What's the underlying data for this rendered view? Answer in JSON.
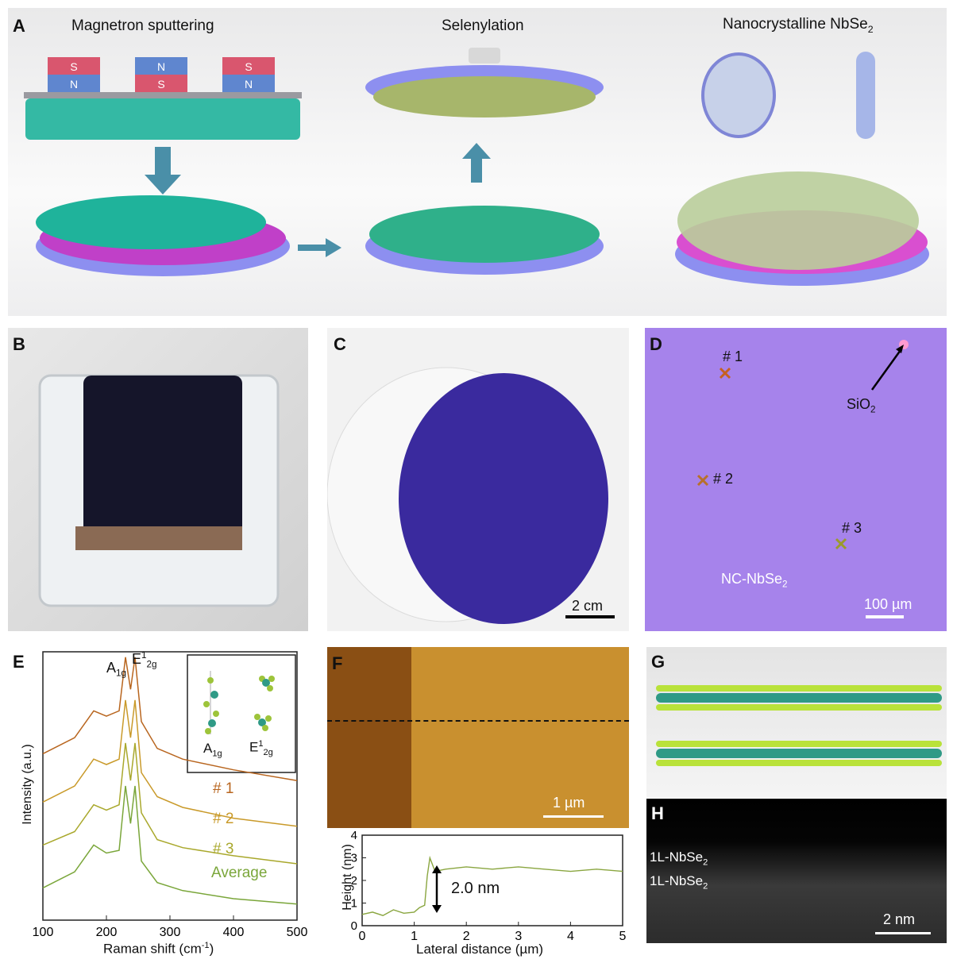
{
  "panelA": {
    "label": "A",
    "step1_title": "Magnetron sputtering",
    "step2_title": "Selenylation",
    "step3_title_main": "Nanocrystalline NbSe",
    "step3_title_sub": "2",
    "magnet_labels": [
      "S",
      "N",
      "N",
      "S",
      "S",
      "N"
    ]
  },
  "panelB": {
    "label": "B"
  },
  "panelC": {
    "label": "C",
    "scale_bar": "2 cm"
  },
  "panelD": {
    "label": "D",
    "point1": "# 1",
    "point2": "# 2",
    "point3": "# 3",
    "sio2_main": "SiO",
    "sio2_sub": "2",
    "film_main": "NC-NbSe",
    "film_sub": "2",
    "scale_bar": "100 µm"
  },
  "panelE": {
    "label": "E",
    "peak_a_main": "A",
    "peak_a_sub": "1g",
    "peak_e_main": "E",
    "peak_e_sup": "1",
    "peak_e_sub": "2g",
    "inset_a_main": "A",
    "inset_a_sub": "1g",
    "inset_e_main": "E",
    "inset_e_sup": "1",
    "inset_e_sub": "2g",
    "ylabel": "Intensity (a.u.)",
    "xlabel_main": "Raman shift (cm",
    "xlabel_sup": "-1",
    "xlabel_end": ")",
    "series_labels": [
      "# 1",
      "# 2",
      "# 3",
      "Average"
    ],
    "series_colors": [
      "#b8651e",
      "#c99a2a",
      "#a9a82c",
      "#7aa63a"
    ]
  },
  "panelF": {
    "label": "F",
    "scale_bar": "1 µm",
    "step_label": "2.0 nm",
    "ylabel": "Height (nm)",
    "xlabel": "Lateral distance (µm)"
  },
  "panelG": {
    "label": "G"
  },
  "panelH": {
    "label": "H",
    "layer1_main": "1L-NbSe",
    "layer1_sub": "2",
    "layer2_main": "1L-NbSe",
    "layer2_sub": "2",
    "scale_bar": "2 nm"
  },
  "chart_data": [
    {
      "type": "line",
      "panel": "E",
      "xlabel": "Raman shift (cm-1)",
      "ylabel": "Intensity (a.u.)",
      "xlim": [
        100,
        500
      ],
      "xticks": [
        100,
        200,
        300,
        400,
        500
      ],
      "series": [
        {
          "name": "# 1",
          "x": [
            100,
            150,
            180,
            200,
            220,
            230,
            238,
            245,
            255,
            280,
            320,
            400,
            500
          ],
          "y": [
            0.62,
            0.68,
            0.78,
            0.76,
            0.78,
            0.98,
            0.86,
            0.98,
            0.74,
            0.64,
            0.6,
            0.56,
            0.52
          ]
        },
        {
          "name": "# 2",
          "x": [
            100,
            150,
            180,
            200,
            220,
            230,
            238,
            245,
            255,
            280,
            320,
            400,
            500
          ],
          "y": [
            0.44,
            0.5,
            0.6,
            0.58,
            0.6,
            0.82,
            0.68,
            0.82,
            0.55,
            0.46,
            0.42,
            0.38,
            0.35
          ]
        },
        {
          "name": "# 3",
          "x": [
            100,
            150,
            180,
            200,
            220,
            230,
            238,
            245,
            255,
            280,
            320,
            400,
            500
          ],
          "y": [
            0.28,
            0.33,
            0.43,
            0.41,
            0.43,
            0.66,
            0.52,
            0.66,
            0.4,
            0.3,
            0.27,
            0.24,
            0.21
          ]
        },
        {
          "name": "Average",
          "x": [
            100,
            150,
            180,
            200,
            220,
            230,
            238,
            245,
            255,
            280,
            320,
            400,
            500
          ],
          "y": [
            0.12,
            0.18,
            0.28,
            0.25,
            0.26,
            0.5,
            0.36,
            0.5,
            0.22,
            0.14,
            0.11,
            0.08,
            0.06
          ]
        }
      ]
    },
    {
      "type": "line",
      "panel": "F",
      "xlabel": "Lateral distance (µm)",
      "ylabel": "Height (nm)",
      "xlim": [
        0,
        5
      ],
      "ylim": [
        0,
        4
      ],
      "xticks": [
        0,
        1,
        2,
        3,
        4,
        5
      ],
      "yticks": [
        0,
        1,
        2,
        3,
        4
      ],
      "series": [
        {
          "name": "",
          "x": [
            0,
            0.2,
            0.4,
            0.6,
            0.8,
            1.0,
            1.1,
            1.2,
            1.25,
            1.3,
            1.4,
            1.6,
            2.0,
            2.5,
            3.0,
            3.5,
            4.0,
            4.5,
            5.0
          ],
          "y": [
            0.5,
            0.6,
            0.45,
            0.7,
            0.55,
            0.6,
            0.8,
            0.9,
            2.2,
            3.0,
            2.4,
            2.5,
            2.6,
            2.5,
            2.6,
            2.5,
            2.4,
            2.5,
            2.4
          ]
        }
      ]
    }
  ]
}
